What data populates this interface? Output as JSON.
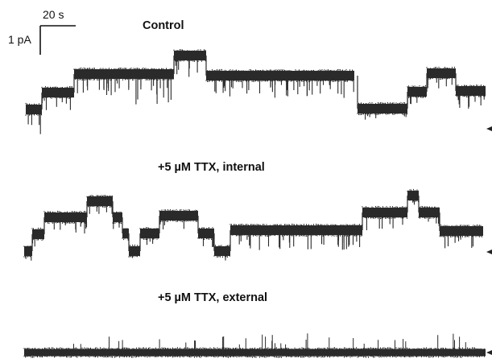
{
  "scale_bar": {
    "time_label": "20 s",
    "current_label": "1 pA"
  },
  "traces": [
    {
      "label": "Control"
    },
    {
      "label": "+5 µM TTX, internal"
    },
    {
      "label": "+5 µM TTX, external"
    }
  ],
  "colors": {
    "trace": "#2a2a2a",
    "text": "#111111",
    "background": "#ffffff"
  }
}
